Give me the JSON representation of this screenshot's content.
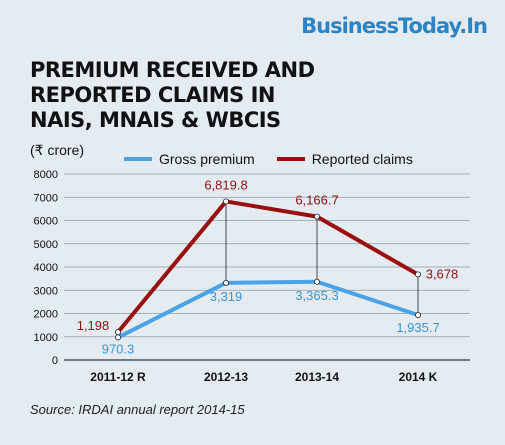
{
  "brand": "BusinessToday.In",
  "title_lines": [
    "PREMIUM RECEIVED AND",
    "REPORTED CLAIMS IN",
    "NAIS, MNAIS & WBCIS"
  ],
  "unit": "(₹ crore)",
  "source": "Source: IRDAI annual report 2014-15",
  "chart_data": {
    "type": "line",
    "categories": [
      "2011-12 R",
      "2012-13",
      "2013-14",
      "2014 K"
    ],
    "ylim": [
      0,
      8000
    ],
    "yticks": [
      0,
      1000,
      2000,
      3000,
      4000,
      5000,
      6000,
      7000,
      8000
    ],
    "grid": true,
    "legend_position": "top",
    "series": [
      {
        "name": "Gross premium",
        "color": "#4aa3e8",
        "values": [
          970.3,
          3319,
          3365.3,
          1935.7
        ],
        "labels": [
          "970.3",
          "3,319",
          "3,365.3",
          "1,935.7"
        ]
      },
      {
        "name": "Reported claims",
        "color": "#990f0f",
        "values": [
          1198,
          6819.8,
          6166.7,
          3678
        ],
        "labels": [
          "1,198",
          "6,819.8",
          "6,166.7",
          "3,678"
        ]
      }
    ]
  }
}
